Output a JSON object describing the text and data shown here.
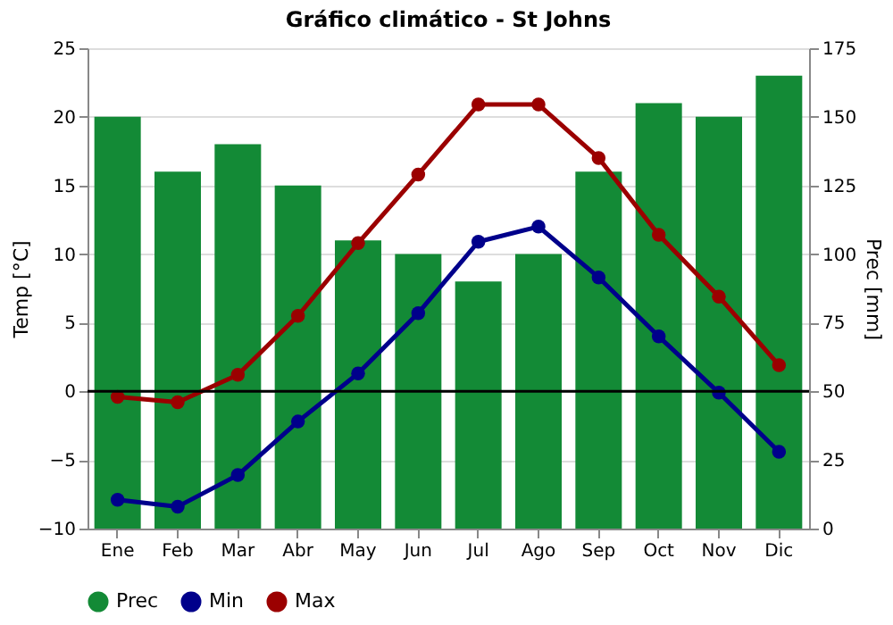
{
  "chart_data": {
    "type": "line",
    "title": "Gráfico climático - St Johns",
    "ylabel": "Temp [°C]",
    "y2label": "Prec [mm]",
    "categories": [
      "Ene",
      "Feb",
      "Mar",
      "Abr",
      "May",
      "Jun",
      "Jul",
      "Ago",
      "Sep",
      "Oct",
      "Nov",
      "Dic"
    ],
    "series": [
      {
        "name": "Prec",
        "type": "bar",
        "axis": "y2",
        "color": "#138a36",
        "values": [
          150,
          130,
          140,
          125,
          105,
          100,
          90,
          100,
          130,
          155,
          150,
          165
        ]
      },
      {
        "name": "Min",
        "color": "#00008b",
        "values": [
          -7.9,
          -8.4,
          -6.1,
          -2.2,
          1.3,
          5.7,
          10.9,
          12.0,
          8.3,
          4.0,
          -0.1,
          -4.4
        ]
      },
      {
        "name": "Max",
        "color": "#9b0000",
        "values": [
          -0.4,
          -0.8,
          1.2,
          5.5,
          10.8,
          15.8,
          20.9,
          20.9,
          17.0,
          11.4,
          6.9,
          1.9
        ]
      }
    ],
    "ylim": [
      -10,
      25
    ],
    "yticks": [
      -10,
      -5,
      0,
      5,
      10,
      15,
      20,
      25
    ],
    "y2lim": [
      0,
      175
    ],
    "y2ticks": [
      0,
      25,
      50,
      75,
      100,
      125,
      150,
      175
    ],
    "ref_lines": [
      {
        "axis": "y",
        "value": 0,
        "color": "#000000"
      }
    ],
    "grid": "y",
    "legend": "bottom",
    "marker": "circle",
    "line_style": "solid"
  }
}
